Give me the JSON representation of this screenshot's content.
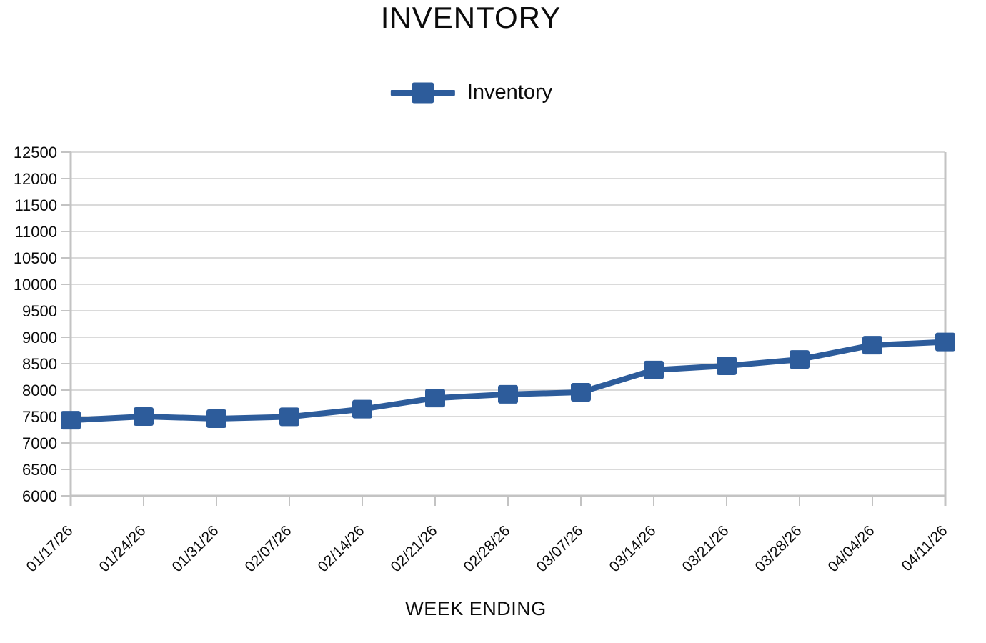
{
  "chart_data": {
    "type": "line",
    "title": "INVENTORY",
    "xlabel": "WEEK ENDING",
    "ylabel": "",
    "legend": {
      "position": "top-center",
      "entries": [
        "Inventory"
      ]
    },
    "categories": [
      "01/17/26",
      "01/24/26",
      "01/31/26",
      "02/07/26",
      "02/14/26",
      "02/21/26",
      "02/28/26",
      "03/07/26",
      "03/14/26",
      "03/21/26",
      "03/28/26",
      "04/04/26",
      "04/11/26"
    ],
    "series": [
      {
        "name": "Inventory",
        "color": "#2d5c9b",
        "marker": "square",
        "values": [
          7430,
          7500,
          7460,
          7495,
          7640,
          7850,
          7920,
          7960,
          8380,
          8460,
          8580,
          8850,
          8910
        ]
      }
    ],
    "ylim": [
      6000,
      12500
    ],
    "ytick_step": 500,
    "grid": "horizontal-only",
    "colors": {
      "series": "#2d5c9b",
      "gridline": "#dadada",
      "axis": "#c3c3c3",
      "tick_text": "#0b0b0b"
    }
  }
}
